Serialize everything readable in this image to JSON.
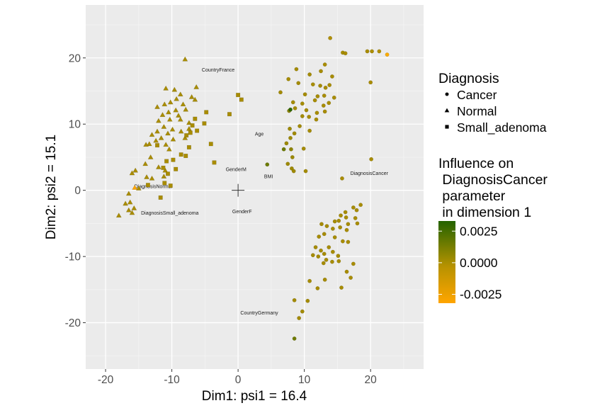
{
  "chart_data": {
    "type": "scatter",
    "xlabel": "Dim1: psi1 = 16.4",
    "ylabel": "Dim2: psi2 = 15.1",
    "xlim": [
      -23,
      28
    ],
    "ylim": [
      -27,
      28
    ],
    "xticks": [
      -20,
      -10,
      0,
      10,
      20
    ],
    "yticks": [
      -20,
      -10,
      0,
      10,
      20
    ],
    "grid": true,
    "background": "#ebebeb",
    "origin_marker": [
      0,
      0
    ],
    "shape_legend": {
      "title": "Diagnosis",
      "items": [
        {
          "label": "Cancer",
          "shape": "circle"
        },
        {
          "label": "Normal",
          "shape": "triangle"
        },
        {
          "label": "Small_adenoma",
          "shape": "square"
        }
      ]
    },
    "color_legend": {
      "title_lines": [
        "Influence on",
        " DiagnosisCancer",
        " parameter",
        " in dimension 1"
      ],
      "ticks": [
        {
          "value": 0.0025,
          "label": "0.0025"
        },
        {
          "value": 0.0,
          "label": "0.0000"
        },
        {
          "value": -0.0025,
          "label": "-0.0025"
        }
      ],
      "range": [
        -0.0032,
        0.0033
      ],
      "gradient": [
        "#ffa500",
        "#b79200",
        "#9b8a00",
        "#246300"
      ]
    },
    "annotations": [
      {
        "text": "CountryFrance",
        "x": -3,
        "y": 18.2
      },
      {
        "text": "Age",
        "x": 3.2,
        "y": 8.5
      },
      {
        "text": "GenderM",
        "x": -0.3,
        "y": 3.2
      },
      {
        "text": "BMI",
        "x": 4.6,
        "y": 2.1
      },
      {
        "text": "DiagnosisCancer",
        "x": 19.8,
        "y": 2.6
      },
      {
        "text": "DiagnosisNormal",
        "x": -12.8,
        "y": 0.6
      },
      {
        "text": "DiagnosisSmall_adenoma",
        "x": -10.3,
        "y": -3.4
      },
      {
        "text": "GenderF",
        "x": 0.6,
        "y": -3.2
      },
      {
        "text": "CountryGermany",
        "x": 3.2,
        "y": -18.5
      }
    ],
    "series": [
      {
        "name": "Cancer",
        "shape": "circle",
        "points": [
          [
            13.9,
            23.0
          ],
          [
            15.8,
            20.8
          ],
          [
            16.2,
            20.7
          ],
          [
            20.2,
            21.0
          ],
          [
            21.3,
            21.0
          ],
          [
            22.5,
            20.5
          ],
          [
            19.5,
            21.0
          ],
          [
            13.1,
            19.0
          ],
          [
            8.8,
            18.3
          ],
          [
            12.5,
            18.0
          ],
          [
            10.8,
            17.5
          ],
          [
            14.2,
            17.2
          ],
          [
            7.6,
            16.8
          ],
          [
            9.1,
            16.2
          ],
          [
            11.3,
            16.0
          ],
          [
            12.4,
            15.8
          ],
          [
            13.2,
            15.5
          ],
          [
            13.8,
            15.9
          ],
          [
            6.4,
            14.8
          ],
          [
            10.1,
            14.5
          ],
          [
            12.0,
            14.2
          ],
          [
            13.0,
            14.3
          ],
          [
            14.5,
            14.0
          ],
          [
            11.6,
            13.6
          ],
          [
            8.3,
            13.3
          ],
          [
            9.7,
            13.1
          ],
          [
            12.9,
            12.8
          ],
          [
            13.7,
            13.2
          ],
          [
            8.6,
            12.4
          ],
          [
            10.3,
            12.1
          ],
          [
            11.9,
            11.7
          ],
          [
            13.1,
            11.9
          ],
          [
            20.0,
            16.3
          ],
          [
            9.7,
            11.2
          ],
          [
            10.7,
            11.1
          ],
          [
            7.7,
            12.0
          ],
          [
            11.8,
            10.7
          ],
          [
            9.3,
            9.7
          ],
          [
            7.8,
            9.3
          ],
          [
            10.8,
            9.0
          ],
          [
            8.5,
            8.6
          ],
          [
            7.9,
            7.9
          ],
          [
            7.3,
            7.1
          ],
          [
            9.9,
            6.3
          ],
          [
            8.0,
            6.2
          ],
          [
            6.9,
            6.2
          ],
          [
            8.2,
            5.0
          ],
          [
            7.5,
            4.0
          ],
          [
            8.1,
            3.3
          ],
          [
            8.4,
            2.9
          ],
          [
            10.2,
            2.9
          ],
          [
            20.1,
            4.7
          ],
          [
            15.7,
            1.8
          ],
          [
            4.4,
            3.9
          ],
          [
            18.5,
            -2.2
          ],
          [
            17.4,
            -2.6
          ],
          [
            17.9,
            -3.0
          ],
          [
            16.2,
            -3.3
          ],
          [
            15.5,
            -3.8
          ],
          [
            16.3,
            -4.1
          ],
          [
            17.7,
            -4.2
          ],
          [
            14.6,
            -4.7
          ],
          [
            15.2,
            -4.6
          ],
          [
            16.6,
            -5.1
          ],
          [
            18.0,
            -5.0
          ],
          [
            12.6,
            -5.1
          ],
          [
            13.4,
            -5.4
          ],
          [
            14.3,
            -5.8
          ],
          [
            15.4,
            -5.6
          ],
          [
            16.4,
            -6.0
          ],
          [
            13.0,
            -6.6
          ],
          [
            14.6,
            -7.1
          ],
          [
            15.8,
            -7.7
          ],
          [
            16.6,
            -7.8
          ],
          [
            12.2,
            -7.0
          ],
          [
            11.7,
            -8.6
          ],
          [
            12.5,
            -9.1
          ],
          [
            13.0,
            -9.6
          ],
          [
            13.7,
            -8.6
          ],
          [
            14.3,
            -9.3
          ],
          [
            15.1,
            -9.9
          ],
          [
            11.3,
            -9.8
          ],
          [
            12.1,
            -10.0
          ],
          [
            13.3,
            -10.5
          ],
          [
            14.2,
            -10.8
          ],
          [
            15.2,
            -10.7
          ],
          [
            12.9,
            -11.0
          ],
          [
            17.4,
            -11.1
          ],
          [
            16.4,
            -12.3
          ],
          [
            17.0,
            -13.2
          ],
          [
            13.1,
            -13.5
          ],
          [
            10.8,
            -13.7
          ],
          [
            15.6,
            -14.7
          ],
          [
            12.0,
            -14.8
          ],
          [
            8.5,
            -16.6
          ],
          [
            10.5,
            -16.7
          ],
          [
            9.7,
            -18.3
          ],
          [
            9.2,
            -19.3
          ],
          [
            8.5,
            -22.4
          ],
          [
            7.9,
            12.2
          ]
        ],
        "colors": [
          "#b08f00",
          "#a78c00",
          "#a88c00",
          "#ad8e00",
          "#b08f00",
          "#fbab00",
          "#a88c00",
          "#a88c00",
          "#a48b00",
          "#a78c00",
          "#a58b00",
          "#a88c00",
          "#a58b00",
          "#a48b00",
          "#a78c00",
          "#a68b00",
          "#a88c00",
          "#a98c00",
          "#a38a00",
          "#a58b00",
          "#a78c00",
          "#a88c00",
          "#a98c00",
          "#a78c00",
          "#a38a00",
          "#a48b00",
          "#a88c00",
          "#a88c00",
          "#a48b00",
          "#a58b00",
          "#a78c00",
          "#a88c00",
          "#a98c00",
          "#a38a00",
          "#a68b00",
          "#8a8200",
          "#a78c00",
          "#a38a00",
          "#9d8900",
          "#a58b00",
          "#a18a00",
          "#9d8900",
          "#9c8800",
          "#a48b00",
          "#8e8400",
          "#6b7a00",
          "#9b8800",
          "#9d8900",
          "#9d8900",
          "#9e8900",
          "#a48b00",
          "#a88c00",
          "#a98c00",
          "#6b7a00",
          "#a88c00",
          "#a78c00",
          "#a88c00",
          "#a78c00",
          "#a78c00",
          "#a88c00",
          "#a88c00",
          "#a68b00",
          "#a78c00",
          "#a88c00",
          "#a88c00",
          "#a68b00",
          "#a68b00",
          "#a78c00",
          "#a78c00",
          "#a88c00",
          "#a68b00",
          "#a78c00",
          "#a88c00",
          "#a88c00",
          "#a68b00",
          "#a68b00",
          "#a68b00",
          "#a68b00",
          "#a78c00",
          "#a78c00",
          "#a78c00",
          "#a58b00",
          "#a68b00",
          "#a68b00",
          "#a78c00",
          "#a78c00",
          "#a68b00",
          "#a88c00",
          "#a78c00",
          "#a88c00",
          "#a68b00",
          "#a58b00",
          "#a78c00",
          "#a68b00",
          "#a38a00",
          "#a48b00",
          "#a38a00",
          "#a38a00",
          "#6f7b00",
          "#2d6600"
        ]
      },
      {
        "name": "Normal",
        "shape": "triangle",
        "points": [
          [
            -8.0,
            19.8
          ],
          [
            -9.6,
            15.2
          ],
          [
            -10.9,
            15.4
          ],
          [
            -7.0,
            14.1
          ],
          [
            -6.3,
            15.6
          ],
          [
            -6.5,
            13.7
          ],
          [
            -8.7,
            14.5
          ],
          [
            -9.3,
            13.8
          ],
          [
            -10.2,
            13.3
          ],
          [
            -8.3,
            13.0
          ],
          [
            -11.1,
            13.0
          ],
          [
            -12.2,
            12.6
          ],
          [
            -9.4,
            12.1
          ],
          [
            -10.5,
            11.8
          ],
          [
            -7.9,
            12.2
          ],
          [
            -11.4,
            11.4
          ],
          [
            -9.0,
            11.3
          ],
          [
            -12.0,
            10.5
          ],
          [
            -10.3,
            10.7
          ],
          [
            -8.7,
            10.7
          ],
          [
            -7.4,
            10.2
          ],
          [
            -11.2,
            9.6
          ],
          [
            -12.2,
            8.9
          ],
          [
            -9.9,
            9.2
          ],
          [
            -7.4,
            9.3
          ],
          [
            -8.6,
            8.9
          ],
          [
            -10.6,
            8.6
          ],
          [
            -11.6,
            7.9
          ],
          [
            -13.0,
            8.4
          ],
          [
            -9.8,
            7.7
          ],
          [
            -12.4,
            7.5
          ],
          [
            -13.4,
            7.0
          ],
          [
            -13.9,
            6.9
          ],
          [
            -10.9,
            6.9
          ],
          [
            -8.0,
            7.9
          ],
          [
            -10.4,
            6.2
          ],
          [
            -13.2,
            5.0
          ],
          [
            -14.0,
            4.0
          ],
          [
            -12.0,
            3.5
          ],
          [
            -11.0,
            3.0
          ],
          [
            -15.5,
            3.0
          ],
          [
            -16.0,
            2.6
          ],
          [
            -13.8,
            2.0
          ],
          [
            -11.2,
            2.1
          ],
          [
            -13.0,
            1.8
          ],
          [
            -15.0,
            0.3
          ],
          [
            -16.5,
            -0.5
          ],
          [
            -15.6,
            0.4
          ],
          [
            -16.3,
            -1.8
          ],
          [
            -17.0,
            -2.0
          ],
          [
            -16.5,
            -3.0
          ],
          [
            -15.7,
            -2.7
          ],
          [
            -18.0,
            -3.8
          ],
          [
            -16.0,
            -3.4
          ]
        ],
        "colors": [
          "#a88c00",
          "#a78c00",
          "#a98c00",
          "#a88c00",
          "#a78c00",
          "#a78c00",
          "#a88c00",
          "#a88c00",
          "#a88c00",
          "#a88c00",
          "#a98c00",
          "#a98c00",
          "#a88c00",
          "#a88c00",
          "#a78c00",
          "#a98c00",
          "#a88c00",
          "#a98c00",
          "#a88c00",
          "#a88c00",
          "#a78c00",
          "#a98c00",
          "#a98c00",
          "#a88c00",
          "#a78c00",
          "#a88c00",
          "#a88c00",
          "#a98c00",
          "#a98c00",
          "#a88c00",
          "#a98c00",
          "#a98c00",
          "#a98c00",
          "#a98c00",
          "#a88c00",
          "#a88c00",
          "#a98c00",
          "#a98c00",
          "#a98c00",
          "#a98c00",
          "#a98c00",
          "#a98c00",
          "#a98c00",
          "#a98c00",
          "#a98c00",
          "#a98c00",
          "#a98c00",
          "#ffa500",
          "#a98c00",
          "#a98c00",
          "#a98c00",
          "#a98c00",
          "#a98c00",
          "#a98c00"
        ]
      },
      {
        "name": "Small_adenoma",
        "shape": "square",
        "points": [
          [
            0.0,
            14.4
          ],
          [
            0.5,
            13.7
          ],
          [
            -1.3,
            11.5
          ],
          [
            -4.8,
            11.8
          ],
          [
            -6.5,
            10.8
          ],
          [
            -5.1,
            10.1
          ],
          [
            -6.9,
            9.8
          ],
          [
            -7.2,
            8.7
          ],
          [
            -4.1,
            7.0
          ],
          [
            -7.4,
            6.5
          ],
          [
            -7.8,
            8.3
          ],
          [
            -7.9,
            5.2
          ],
          [
            -8.6,
            5.4
          ],
          [
            -9.8,
            4.6
          ],
          [
            -10.8,
            4.4
          ],
          [
            -9.4,
            3.2
          ],
          [
            -3.6,
            4.2
          ],
          [
            -11.3,
            3.4
          ],
          [
            -10.6,
            2.5
          ],
          [
            -11.1,
            1.1
          ],
          [
            -10.2,
            0.7
          ],
          [
            -11.7,
            -1.1
          ],
          [
            -13.6,
            0.8
          ],
          [
            -12.2,
            6.8
          ],
          [
            -6.2,
            9.0
          ]
        ],
        "colors": [
          "#a88c00",
          "#a88c00",
          "#a88c00",
          "#a98c00",
          "#a88c00",
          "#a88c00",
          "#a88c00",
          "#a88c00",
          "#a88c00",
          "#a98c00",
          "#a98c00",
          "#a98c00",
          "#a98c00",
          "#a98c00",
          "#a98c00",
          "#a98c00",
          "#a98c00",
          "#a98c00",
          "#a98c00",
          "#a98c00",
          "#a98c00",
          "#a98c00",
          "#a98c00",
          "#a98c00",
          "#a88c00"
        ]
      }
    ]
  }
}
